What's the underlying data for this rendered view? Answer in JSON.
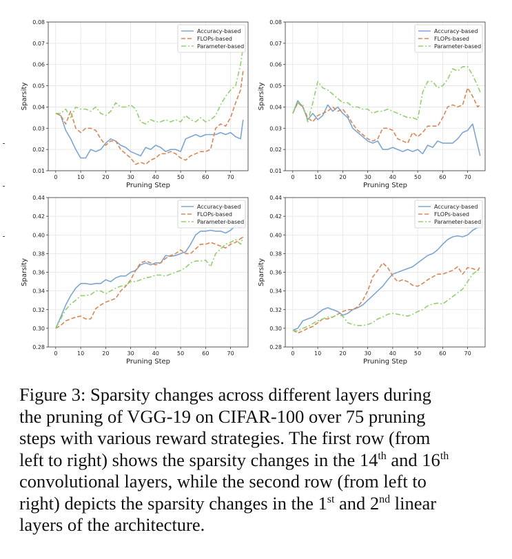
{
  "colors": {
    "accuracy": "#7ba5d6",
    "flops": "#dd8452",
    "parameter": "#8fd16b",
    "grid": "#e3e3e3",
    "axis": "#333333"
  },
  "chart_data": [
    {
      "type": "line",
      "panel": "top-left",
      "title": "",
      "xlabel": "Pruning Step",
      "ylabel": "Sparsity",
      "xlim": [
        -3,
        77
      ],
      "ylim": [
        0.01,
        0.08
      ],
      "xticks": [
        "0",
        "10",
        "20",
        "30",
        "40",
        "50",
        "60",
        "70"
      ],
      "yticks": [
        "0.01",
        "0.02",
        "0.03",
        "0.04",
        "0.05",
        "0.06",
        "0.07",
        "0.08"
      ],
      "legend": "top-right",
      "grid": true,
      "x": [
        0,
        2,
        4,
        6,
        8,
        10,
        12,
        14,
        16,
        18,
        20,
        22,
        24,
        26,
        28,
        30,
        32,
        34,
        36,
        38,
        40,
        42,
        44,
        46,
        48,
        50,
        52,
        54,
        56,
        58,
        60,
        62,
        64,
        66,
        68,
        70,
        72,
        74,
        75
      ],
      "series": [
        {
          "name": "Accuracy-based",
          "style": "solid",
          "values": [
            0.037,
            0.036,
            0.029,
            0.025,
            0.02,
            0.016,
            0.016,
            0.02,
            0.019,
            0.02,
            0.023,
            0.025,
            0.024,
            0.022,
            0.021,
            0.019,
            0.018,
            0.017,
            0.021,
            0.02,
            0.022,
            0.021,
            0.019,
            0.02,
            0.02,
            0.019,
            0.025,
            0.026,
            0.027,
            0.026,
            0.027,
            0.027,
            0.027,
            0.028,
            0.027,
            0.028,
            0.026,
            0.025,
            0.034
          ]
        },
        {
          "name": "FLOPs-based",
          "style": "dashed",
          "values": [
            0.037,
            0.036,
            0.032,
            0.038,
            0.03,
            0.028,
            0.03,
            0.03,
            0.029,
            0.025,
            0.022,
            0.024,
            0.024,
            0.02,
            0.018,
            0.016,
            0.013,
            0.014,
            0.013,
            0.015,
            0.016,
            0.018,
            0.018,
            0.019,
            0.018,
            0.016,
            0.015,
            0.017,
            0.018,
            0.019,
            0.019,
            0.02,
            0.03,
            0.032,
            0.031,
            0.035,
            0.042,
            0.048,
            0.057
          ]
        },
        {
          "name": "Parameter-based",
          "style": "dashdot",
          "values": [
            0.037,
            0.037,
            0.039,
            0.035,
            0.04,
            0.039,
            0.039,
            0.038,
            0.04,
            0.037,
            0.036,
            0.038,
            0.042,
            0.04,
            0.04,
            0.041,
            0.039,
            0.033,
            0.032,
            0.034,
            0.033,
            0.033,
            0.034,
            0.033,
            0.034,
            0.033,
            0.036,
            0.034,
            0.033,
            0.035,
            0.033,
            0.034,
            0.036,
            0.041,
            0.045,
            0.048,
            0.05,
            0.06,
            0.068
          ]
        }
      ]
    },
    {
      "type": "line",
      "panel": "top-right",
      "title": "",
      "xlabel": "Pruning Step",
      "ylabel": "Sparsity",
      "xlim": [
        -3,
        77
      ],
      "ylim": [
        0.01,
        0.08
      ],
      "xticks": [
        "0",
        "10",
        "20",
        "30",
        "40",
        "50",
        "60",
        "70"
      ],
      "yticks": [
        "0.01",
        "0.02",
        "0.03",
        "0.04",
        "0.05",
        "0.06",
        "0.07",
        "0.08"
      ],
      "legend": "top-right",
      "grid": true,
      "x": [
        0,
        2,
        4,
        6,
        8,
        10,
        12,
        14,
        16,
        18,
        20,
        22,
        24,
        26,
        28,
        30,
        32,
        34,
        36,
        38,
        40,
        42,
        44,
        46,
        48,
        50,
        52,
        54,
        56,
        58,
        60,
        62,
        64,
        66,
        68,
        70,
        72,
        74,
        75
      ],
      "series": [
        {
          "name": "Accuracy-based",
          "style": "solid",
          "values": [
            0.037,
            0.043,
            0.04,
            0.034,
            0.037,
            0.034,
            0.036,
            0.041,
            0.038,
            0.04,
            0.037,
            0.035,
            0.03,
            0.028,
            0.026,
            0.024,
            0.023,
            0.024,
            0.02,
            0.02,
            0.021,
            0.02,
            0.019,
            0.02,
            0.019,
            0.02,
            0.018,
            0.022,
            0.021,
            0.024,
            0.023,
            0.023,
            0.023,
            0.025,
            0.028,
            0.029,
            0.032,
            0.022,
            0.017
          ]
        },
        {
          "name": "FLOPs-based",
          "style": "dashed",
          "values": [
            0.037,
            0.042,
            0.04,
            0.035,
            0.033,
            0.036,
            0.037,
            0.038,
            0.04,
            0.038,
            0.039,
            0.036,
            0.032,
            0.029,
            0.027,
            0.025,
            0.024,
            0.025,
            0.03,
            0.03,
            0.029,
            0.025,
            0.024,
            0.023,
            0.028,
            0.026,
            0.028,
            0.031,
            0.031,
            0.031,
            0.035,
            0.04,
            0.041,
            0.04,
            0.041,
            0.049,
            0.045,
            0.04,
            0.041
          ]
        },
        {
          "name": "Parameter-based",
          "style": "dashdot",
          "values": [
            0.037,
            0.042,
            0.041,
            0.033,
            0.042,
            0.052,
            0.049,
            0.048,
            0.046,
            0.044,
            0.042,
            0.042,
            0.04,
            0.04,
            0.039,
            0.039,
            0.037,
            0.038,
            0.038,
            0.039,
            0.038,
            0.037,
            0.036,
            0.035,
            0.035,
            0.034,
            0.047,
            0.052,
            0.052,
            0.049,
            0.05,
            0.053,
            0.058,
            0.057,
            0.059,
            0.059,
            0.055,
            0.05,
            0.047
          ]
        }
      ]
    },
    {
      "type": "line",
      "panel": "bottom-left",
      "title": "",
      "xlabel": "Pruning Step",
      "ylabel": "Sparsity",
      "xlim": [
        -3,
        77
      ],
      "ylim": [
        0.28,
        0.44
      ],
      "xticks": [
        "0",
        "10",
        "20",
        "30",
        "40",
        "50",
        "60",
        "70"
      ],
      "yticks": [
        "0.28",
        "0.30",
        "0.32",
        "0.34",
        "0.36",
        "0.38",
        "0.40",
        "0.42",
        "0.44"
      ],
      "legend": "top-right",
      "grid": true,
      "x": [
        0,
        2,
        4,
        6,
        8,
        10,
        12,
        14,
        16,
        18,
        20,
        22,
        24,
        26,
        28,
        30,
        32,
        34,
        36,
        38,
        40,
        42,
        44,
        46,
        48,
        50,
        52,
        54,
        56,
        58,
        60,
        62,
        64,
        66,
        68,
        70,
        72,
        74,
        75
      ],
      "series": [
        {
          "name": "Accuracy-based",
          "style": "solid",
          "values": [
            0.3,
            0.312,
            0.325,
            0.335,
            0.343,
            0.348,
            0.348,
            0.347,
            0.348,
            0.348,
            0.352,
            0.35,
            0.354,
            0.356,
            0.356,
            0.36,
            0.362,
            0.368,
            0.37,
            0.368,
            0.37,
            0.37,
            0.378,
            0.377,
            0.378,
            0.38,
            0.382,
            0.39,
            0.4,
            0.404,
            0.404,
            0.405,
            0.404,
            0.404,
            0.402,
            0.405,
            0.41,
            0.408,
            0.41
          ]
        },
        {
          "name": "FLOPs-based",
          "style": "dashed",
          "values": [
            0.3,
            0.303,
            0.308,
            0.31,
            0.312,
            0.313,
            0.31,
            0.31,
            0.321,
            0.325,
            0.328,
            0.33,
            0.332,
            0.34,
            0.345,
            0.352,
            0.362,
            0.37,
            0.372,
            0.37,
            0.368,
            0.37,
            0.375,
            0.378,
            0.38,
            0.384,
            0.38,
            0.38,
            0.385,
            0.39,
            0.39,
            0.392,
            0.39,
            0.388,
            0.386,
            0.39,
            0.392,
            0.396,
            0.398
          ]
        },
        {
          "name": "Parameter-based",
          "style": "dashdot",
          "values": [
            0.3,
            0.31,
            0.32,
            0.326,
            0.33,
            0.335,
            0.335,
            0.336,
            0.34,
            0.34,
            0.337,
            0.34,
            0.343,
            0.345,
            0.346,
            0.35,
            0.35,
            0.352,
            0.354,
            0.355,
            0.357,
            0.357,
            0.356,
            0.358,
            0.36,
            0.362,
            0.365,
            0.37,
            0.372,
            0.372,
            0.373,
            0.366,
            0.38,
            0.385,
            0.39,
            0.392,
            0.395,
            0.39,
            0.398
          ]
        }
      ]
    },
    {
      "type": "line",
      "panel": "bottom-right",
      "title": "",
      "xlabel": "Pruning Step",
      "ylabel": "Sparsity",
      "xlim": [
        -3,
        77
      ],
      "ylim": [
        0.28,
        0.44
      ],
      "xticks": [
        "0",
        "10",
        "20",
        "30",
        "40",
        "50",
        "60",
        "70"
      ],
      "yticks": [
        "0.28",
        "0.30",
        "0.32",
        "0.34",
        "0.36",
        "0.38",
        "0.40",
        "0.42",
        "0.44"
      ],
      "legend": "top-right",
      "grid": true,
      "x": [
        0,
        2,
        4,
        6,
        8,
        10,
        12,
        14,
        16,
        18,
        20,
        22,
        24,
        26,
        28,
        30,
        32,
        34,
        36,
        38,
        40,
        42,
        44,
        46,
        48,
        50,
        52,
        54,
        56,
        58,
        60,
        62,
        64,
        66,
        68,
        70,
        72,
        74,
        75
      ],
      "series": [
        {
          "name": "Accuracy-based",
          "style": "solid",
          "values": [
            0.298,
            0.3,
            0.308,
            0.31,
            0.312,
            0.316,
            0.32,
            0.322,
            0.32,
            0.318,
            0.314,
            0.316,
            0.32,
            0.322,
            0.325,
            0.33,
            0.335,
            0.34,
            0.345,
            0.352,
            0.358,
            0.36,
            0.362,
            0.364,
            0.366,
            0.37,
            0.374,
            0.378,
            0.38,
            0.384,
            0.39,
            0.395,
            0.398,
            0.399,
            0.398,
            0.4,
            0.405,
            0.408,
            0.41
          ]
        },
        {
          "name": "FLOPs-based",
          "style": "dashed",
          "values": [
            0.298,
            0.295,
            0.297,
            0.3,
            0.302,
            0.306,
            0.31,
            0.31,
            0.312,
            0.315,
            0.318,
            0.32,
            0.32,
            0.323,
            0.33,
            0.34,
            0.355,
            0.362,
            0.37,
            0.365,
            0.356,
            0.35,
            0.352,
            0.35,
            0.346,
            0.345,
            0.348,
            0.352,
            0.355,
            0.358,
            0.358,
            0.36,
            0.362,
            0.366,
            0.358,
            0.365,
            0.364,
            0.362,
            0.366
          ]
        },
        {
          "name": "Parameter-based",
          "style": "dashdot",
          "values": [
            0.298,
            0.297,
            0.3,
            0.302,
            0.305,
            0.308,
            0.31,
            0.312,
            0.312,
            0.315,
            0.313,
            0.306,
            0.304,
            0.303,
            0.303,
            0.304,
            0.306,
            0.31,
            0.312,
            0.315,
            0.316,
            0.315,
            0.314,
            0.313,
            0.315,
            0.318,
            0.32,
            0.324,
            0.326,
            0.327,
            0.326,
            0.33,
            0.334,
            0.338,
            0.342,
            0.35,
            0.358,
            0.362,
            0.363
          ]
        }
      ]
    }
  ],
  "caption": {
    "line1": "Figure 3:  Sparsity changes across different layers during",
    "line2": "the pruning of VGG-19 on CIFAR-100 over 75 pruning",
    "line3": "steps with various reward strategies. The first row (from",
    "line4_a": "left to right) shows the sparsity changes in the 14",
    "sup_th_1": "th",
    "line4_b": " and 16",
    "sup_th_2": "th",
    "line5": "convolutional layers, while the second row (from left to",
    "line6_a": "right) depicts the sparsity changes in the 1",
    "sup_st": "st",
    "line6_b": " and 2",
    "sup_nd": "nd",
    "line6_c": " linear",
    "line7": "layers of the architecture."
  }
}
